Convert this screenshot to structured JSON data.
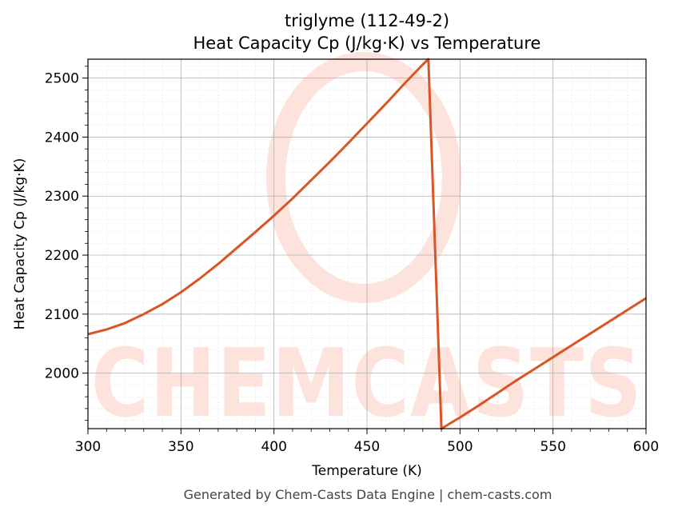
{
  "chart_data": {
    "type": "line",
    "title": "triglyme (112-49-2)",
    "subtitle": "Heat Capacity Cp (J/kg·K) vs Temperature",
    "xlabel": "Temperature (K)",
    "ylabel": "Heat Capacity Cp (J/kg·K)",
    "xlim": [
      300,
      600
    ],
    "ylim": [
      1906,
      2532
    ],
    "xticks": [
      300,
      350,
      400,
      450,
      500,
      550,
      600
    ],
    "yticks": [
      2000,
      2100,
      2200,
      2300,
      2400,
      2500
    ],
    "grid": true,
    "legend": "none",
    "line_color": "#d95525",
    "series": [
      {
        "x": [
          300,
          310,
          320,
          330,
          340,
          350,
          360,
          370,
          380,
          390,
          400,
          410,
          420,
          430,
          440,
          450,
          460,
          470,
          480,
          483,
          490,
          500,
          510,
          520,
          530,
          540,
          550,
          560,
          570,
          580,
          590,
          600
        ],
        "values": [
          2066,
          2074,
          2085,
          2100,
          2117,
          2137,
          2160,
          2185,
          2212,
          2239,
          2267,
          2296,
          2327,
          2358,
          2390,
          2423,
          2456,
          2490,
          2523,
          2532,
          1906,
          1925,
          1945,
          1966,
          1987,
          2007,
          2027,
          2047,
          2067,
          2087,
          2107,
          2127
        ]
      }
    ]
  },
  "watermark": {
    "text": "CHEMCASTS",
    "color": "#fde0d8"
  },
  "footer": {
    "text": "Generated by Chem-Casts Data Engine | chem-casts.com"
  }
}
